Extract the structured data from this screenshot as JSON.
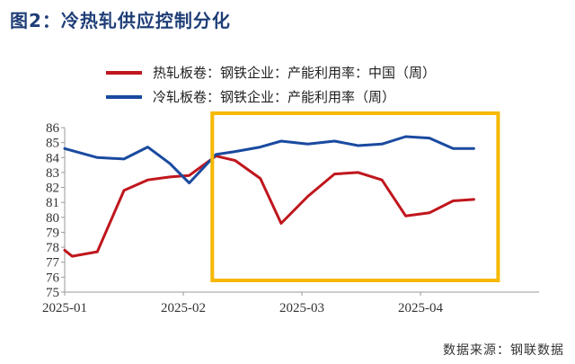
{
  "title": "图2：冷热轧供应控制分化",
  "source": "数据来源：钢联数据",
  "chart_data": {
    "type": "line",
    "ylim": [
      75,
      86
    ],
    "yticks": [
      75,
      76,
      77,
      78,
      79,
      80,
      81,
      82,
      83,
      84,
      85,
      86
    ],
    "xlim": [
      0,
      16
    ],
    "xticks": [
      {
        "label": "2025-01",
        "x": 0
      },
      {
        "label": "2025-02",
        "x": 4
      },
      {
        "label": "2025-03",
        "x": 8
      },
      {
        "label": "2025-04",
        "x": 12
      }
    ],
    "grid": false,
    "legend_position": "top",
    "series": [
      {
        "name": "热轧板卷：钢铁企业：产能利用率：中国（周）",
        "color": "#c0161d",
        "x": [
          0,
          0.25,
          1.1,
          2,
          2.8,
          3.55,
          4.2,
          5.1,
          5.75,
          6.6,
          7.3,
          8.2,
          9.1,
          9.9,
          10.7,
          11.5,
          12.3,
          13.1,
          13.8
        ],
        "values": [
          77.8,
          77.4,
          77.7,
          81.8,
          82.5,
          82.7,
          82.8,
          84.1,
          83.8,
          82.6,
          79.6,
          81.4,
          82.9,
          83.0,
          82.5,
          80.1,
          80.3,
          81.1,
          81.2
        ]
      },
      {
        "name": "冷轧板卷：钢铁企业：产能利用率（周）",
        "color": "#1a4aa0",
        "x": [
          0,
          1.1,
          2,
          2.8,
          3.55,
          4.2,
          5.1,
          5.75,
          6.6,
          7.3,
          8.2,
          9.1,
          9.9,
          10.7,
          11.5,
          12.3,
          13.1,
          13.8
        ],
        "values": [
          84.6,
          84.0,
          83.9,
          84.7,
          83.6,
          82.3,
          84.2,
          84.4,
          84.7,
          85.1,
          84.9,
          85.1,
          84.8,
          84.9,
          85.4,
          85.3,
          84.6,
          84.6
        ]
      }
    ],
    "annotations": [
      {
        "type": "highlight-box",
        "color": "#f6b800",
        "x_range": [
          5.1,
          13.8
        ]
      }
    ]
  }
}
